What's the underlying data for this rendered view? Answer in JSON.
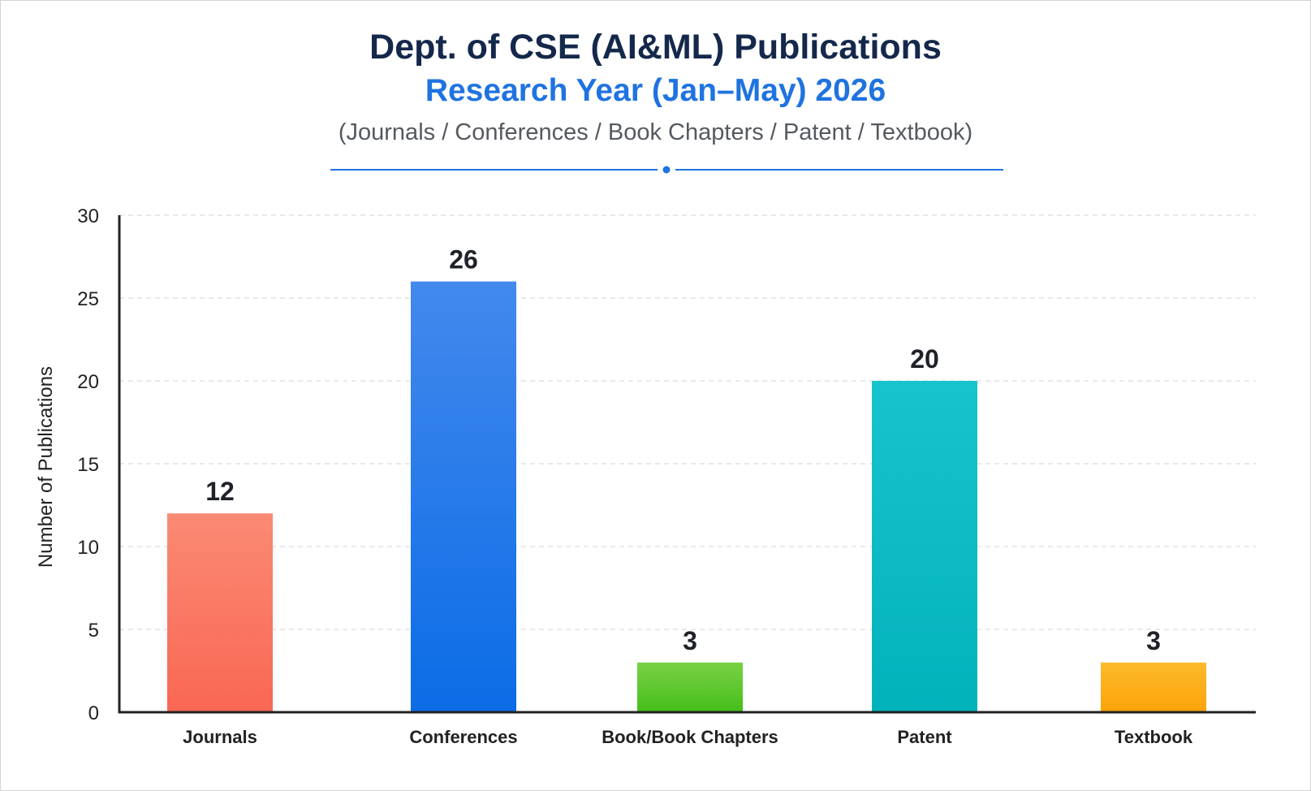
{
  "chart_data": {
    "type": "bar",
    "title": "Dept. of CSE (AI&ML) Publications",
    "subtitle": "Research Year (Jan–May) 2026",
    "caption": "(Journals / Conferences / Book Chapters / Patent / Textbook)",
    "xlabel": "",
    "ylabel": "Number of Publications",
    "categories": [
      "Journals",
      "Conferences",
      "Book/Book Chapters",
      "Patent",
      "Textbook"
    ],
    "values": [
      12,
      26,
      3,
      20,
      3
    ],
    "ylim": [
      0,
      30
    ],
    "yticks": [
      0,
      5,
      10,
      15,
      20,
      25,
      30
    ],
    "grid": "horizontal dashed",
    "legend": "none",
    "colors": [
      {
        "top": "#fa8a74",
        "bottom": "#f96753"
      },
      {
        "top": "#4389ed",
        "bottom": "#0b6ce6"
      },
      {
        "top": "#79d145",
        "bottom": "#45bf1a"
      },
      {
        "top": "#17c4cd",
        "bottom": "#02b2bb"
      },
      {
        "top": "#fdba2c",
        "bottom": "#fba308"
      }
    ]
  },
  "style": {
    "title_color": "#14284b",
    "subtitle_color": "#1f73e0",
    "divider_color": "#1f73e0",
    "grid_color": "#dcdcdc",
    "axis_color": "#222222"
  }
}
